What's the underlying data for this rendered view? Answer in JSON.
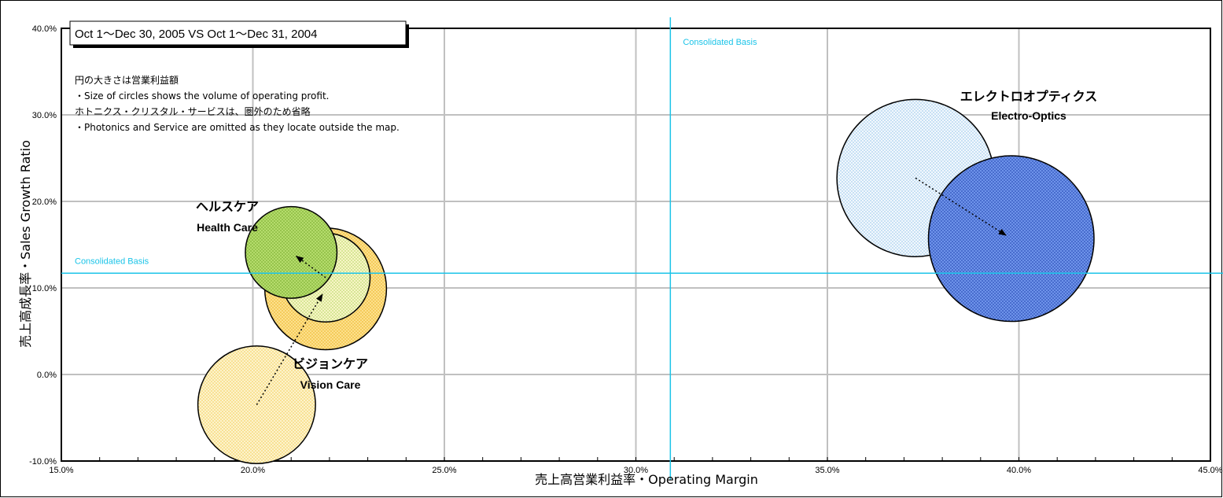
{
  "chart_data": {
    "type": "bubble",
    "title": "Oct 1～Dec 30, 2005 VS Oct 1～Dec 31, 2004",
    "xlabel": "売上高営業利益率・Operating Margin",
    "ylabel": "売上高成長率・Sales Growth Ratio",
    "xlim": [
      15,
      45
    ],
    "ylim": [
      -10,
      40
    ],
    "x_ticks": [
      "15.0%",
      "20.0%",
      "25.0%",
      "30.0%",
      "35.0%",
      "40.0%",
      "45.0%"
    ],
    "y_ticks": [
      "-10.0%",
      "0.0%",
      "10.0%",
      "20.0%",
      "30.0%",
      "40.0%"
    ],
    "grid": true,
    "annotations": [
      "円の大きさは営業利益額",
      "・Size of circles shows the volume of operating profit.",
      "ホトニクス・クリスタル・サービスは、圏外のため省略",
      "・Photonics and Service are omitted as  they locate outside the map."
    ],
    "reference_lines": {
      "x": 30.9,
      "y": 11.7,
      "label": "Consolidated Basis"
    },
    "series": [
      {
        "name_jp": "エレクトロオプティクス",
        "name_en": "Electro-Optics",
        "color_2004": "#dcecf8",
        "color_2005": "#5a82e0",
        "points": [
          {
            "period": "2004",
            "x": 37.3,
            "y": 22.7,
            "size": 100
          },
          {
            "period": "2005",
            "x": 39.8,
            "y": 15.7,
            "size": 111
          }
        ]
      },
      {
        "name_jp": "ヘルスケア",
        "name_en": "Health Care",
        "color_2004": "#f4f0b4",
        "color_2005": "#a6d45a",
        "points": [
          {
            "period": "2004",
            "x": 21.9,
            "y": 11.2,
            "size": 32
          },
          {
            "period": "2005",
            "x": 21.0,
            "y": 14.1,
            "size": 34
          }
        ]
      },
      {
        "name_jp": "ビジョンケア",
        "name_en": "Vision Care",
        "color_2004": "#fbe7a4",
        "color_2005": "#f9d76a",
        "points": [
          {
            "period": "2004",
            "x": 20.1,
            "y": -3.5,
            "size": 56
          },
          {
            "period": "2005",
            "x": 21.9,
            "y": 9.9,
            "size": 60
          }
        ]
      }
    ]
  }
}
